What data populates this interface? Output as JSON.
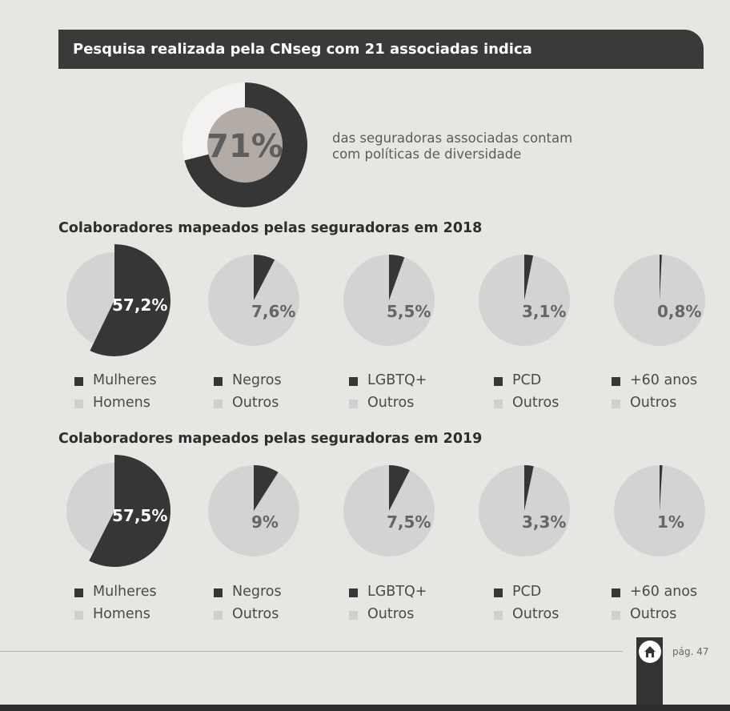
{
  "header": {
    "title": "Pesquisa realizada pela CNseg com 21 associadas indica"
  },
  "highlight": {
    "value_label": "71%",
    "value": 71,
    "description": "das seguradoras associadas contam com políticas de diversidade"
  },
  "colors": {
    "dark": "#363636",
    "light": "#d3d3d3",
    "center": "#b3aca6",
    "donut_rest": "#f3f2f0"
  },
  "chart_data": [
    {
      "type": "pie",
      "title": "Colaboradores mapeados pelas seguradoras em 2018",
      "charts": [
        {
          "label": "57,2%",
          "value": 57.2,
          "legend": [
            "Mulheres",
            "Homens"
          ]
        },
        {
          "label": "7,6%",
          "value": 7.6,
          "legend": [
            "Negros",
            "Outros"
          ]
        },
        {
          "label": "5,5%",
          "value": 5.5,
          "legend": [
            "LGBTQ+",
            "Outros"
          ]
        },
        {
          "label": "3,1%",
          "value": 3.1,
          "legend": [
            "PCD",
            "Outros"
          ]
        },
        {
          "label": "0,8%",
          "value": 0.8,
          "legend": [
            "+60 anos",
            "Outros"
          ]
        }
      ]
    },
    {
      "type": "pie",
      "title": "Colaboradores mapeados pelas seguradoras em 2019",
      "charts": [
        {
          "label": "57,5%",
          "value": 57.5,
          "legend": [
            "Mulheres",
            "Homens"
          ]
        },
        {
          "label": "9%",
          "value": 9,
          "legend": [
            "Negros",
            "Outros"
          ]
        },
        {
          "label": "7,5%",
          "value": 7.5,
          "legend": [
            "LGBTQ+",
            "Outros"
          ]
        },
        {
          "label": "3,3%",
          "value": 3.3,
          "legend": [
            "PCD",
            "Outros"
          ]
        },
        {
          "label": "1%",
          "value": 1,
          "legend": [
            "+60 anos",
            "Outros"
          ]
        }
      ]
    }
  ],
  "footer": {
    "page": "pág. 47",
    "home_icon": "home-icon"
  }
}
